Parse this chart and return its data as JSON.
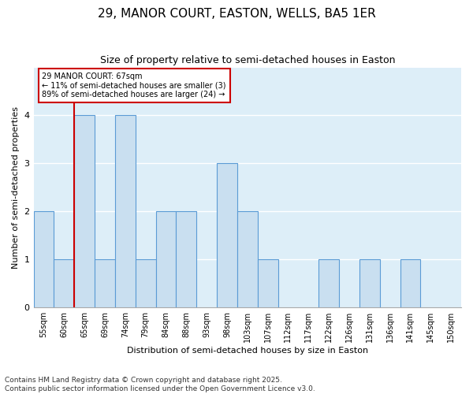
{
  "title": "29, MANOR COURT, EASTON, WELLS, BA5 1ER",
  "subtitle": "Size of property relative to semi-detached houses in Easton",
  "xlabel": "Distribution of semi-detached houses by size in Easton",
  "ylabel": "Number of semi-detached properties",
  "categories": [
    "55sqm",
    "60sqm",
    "65sqm",
    "69sqm",
    "74sqm",
    "79sqm",
    "84sqm",
    "88sqm",
    "93sqm",
    "98sqm",
    "103sqm",
    "107sqm",
    "112sqm",
    "117sqm",
    "122sqm",
    "126sqm",
    "131sqm",
    "136sqm",
    "141sqm",
    "145sqm",
    "150sqm"
  ],
  "values": [
    2,
    1,
    4,
    1,
    4,
    1,
    2,
    2,
    0,
    3,
    2,
    1,
    0,
    0,
    1,
    0,
    1,
    0,
    1,
    0,
    0
  ],
  "bar_color": "#c9dff0",
  "bar_edge_color": "#5b9bd5",
  "red_line_index": 2,
  "property_label": "29 MANOR COURT: 67sqm",
  "smaller_pct": "11%",
  "smaller_count": 3,
  "larger_pct": "89%",
  "larger_count": 24,
  "ylim": [
    0,
    5
  ],
  "yticks": [
    0,
    1,
    2,
    3,
    4,
    5
  ],
  "annotation_box_color": "#ffffff",
  "annotation_box_edge": "#cc0000",
  "title_fontsize": 11,
  "subtitle_fontsize": 9,
  "axis_label_fontsize": 8,
  "tick_fontsize": 7,
  "footnote": "Contains HM Land Registry data © Crown copyright and database right 2025.\nContains public sector information licensed under the Open Government Licence v3.0.",
  "footnote_fontsize": 6.5,
  "background_color": "#ddeef8"
}
